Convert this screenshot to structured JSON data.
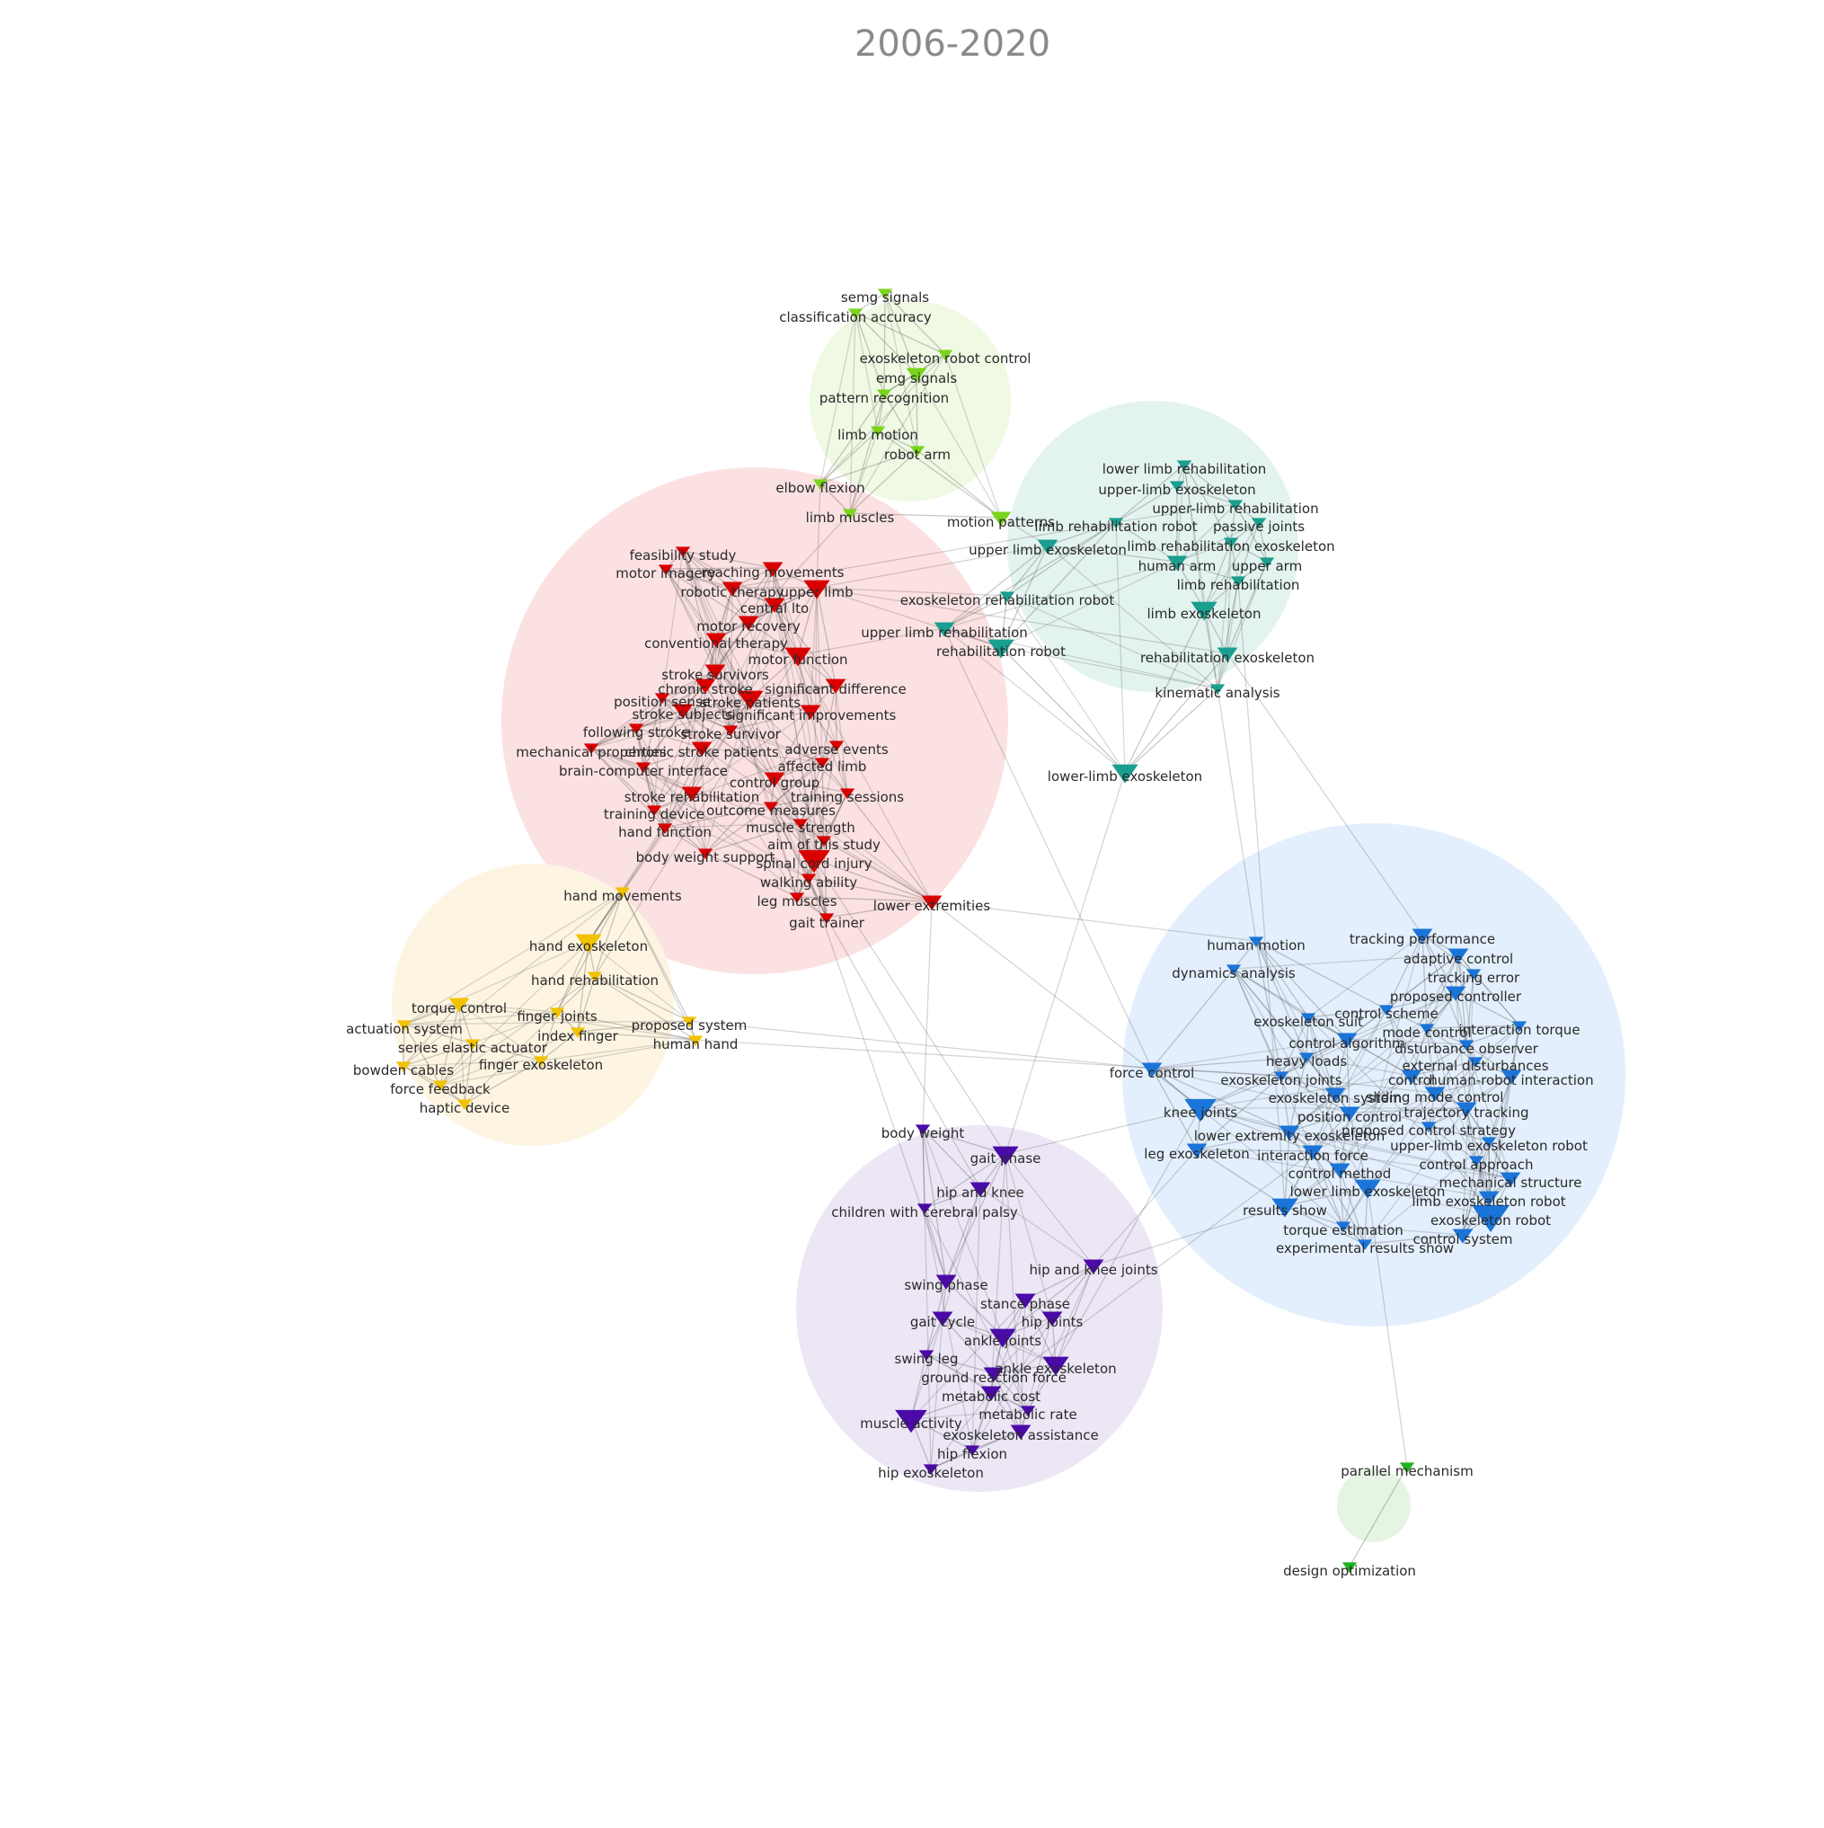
{
  "title": "2006-2020",
  "clusters": [
    {
      "id": "red",
      "color": "#d90000",
      "halo": "#fbe1e1"
    },
    {
      "id": "teal",
      "color": "#1a9e8f",
      "halo": "#e3f3ef"
    },
    {
      "id": "lime",
      "color": "#7ad51c",
      "halo": "#eff9e4"
    },
    {
      "id": "yellow",
      "color": "#f2c200",
      "halo": "#fdf5e2"
    },
    {
      "id": "blue",
      "color": "#1b74d8",
      "halo": "#e3effc"
    },
    {
      "id": "purple",
      "color": "#4a0aa8",
      "halo": "#ece6f5"
    },
    {
      "id": "green",
      "color": "#1fb31f",
      "halo": "#e6f5e3"
    }
  ],
  "nodes": [
    {
      "label": "semg signals",
      "cluster": "lime",
      "size": 1
    },
    {
      "label": "classification accuracy",
      "cluster": "lime",
      "size": 1
    },
    {
      "label": "exoskeleton robot control",
      "cluster": "lime",
      "size": 1
    },
    {
      "label": "emg signals",
      "cluster": "lime",
      "size": 2
    },
    {
      "label": "pattern recognition",
      "cluster": "lime",
      "size": 1
    },
    {
      "label": "limb motion",
      "cluster": "lime",
      "size": 1
    },
    {
      "label": "robot arm",
      "cluster": "lime",
      "size": 1
    },
    {
      "label": "elbow flexion",
      "cluster": "lime",
      "size": 1
    },
    {
      "label": "limb muscles",
      "cluster": "lime",
      "size": 1
    },
    {
      "label": "motion patterns",
      "cluster": "lime",
      "size": 2
    },
    {
      "label": "lower limb rehabilitation",
      "cluster": "teal",
      "size": 1
    },
    {
      "label": "upper-limb exoskeleton",
      "cluster": "teal",
      "size": 1
    },
    {
      "label": "upper-limb rehabilitation",
      "cluster": "teal",
      "size": 1
    },
    {
      "label": "limb rehabilitation robot",
      "cluster": "teal",
      "size": 1
    },
    {
      "label": "passive joints",
      "cluster": "teal",
      "size": 1
    },
    {
      "label": "upper limb exoskeleton",
      "cluster": "teal",
      "size": 2
    },
    {
      "label": "limb rehabilitation exoskeleton",
      "cluster": "teal",
      "size": 1
    },
    {
      "label": "human arm",
      "cluster": "teal",
      "size": 2
    },
    {
      "label": "upper arm",
      "cluster": "teal",
      "size": 1
    },
    {
      "label": "limb rehabilitation",
      "cluster": "teal",
      "size": 1
    },
    {
      "label": "exoskeleton rehabilitation robot",
      "cluster": "teal",
      "size": 1
    },
    {
      "label": "limb exoskeleton",
      "cluster": "teal",
      "size": 3
    },
    {
      "label": "upper limb rehabilitation",
      "cluster": "teal",
      "size": 2
    },
    {
      "label": "rehabilitation robot",
      "cluster": "teal",
      "size": 3
    },
    {
      "label": "rehabilitation exoskeleton",
      "cluster": "teal",
      "size": 2
    },
    {
      "label": "kinematic analysis",
      "cluster": "teal",
      "size": 1
    },
    {
      "label": "lower-limb exoskeleton",
      "cluster": "teal",
      "size": 3
    },
    {
      "label": "feasibility study",
      "cluster": "red",
      "size": 1
    },
    {
      "label": "motor imagery",
      "cluster": "red",
      "size": 1
    },
    {
      "label": "reaching movements",
      "cluster": "red",
      "size": 2
    },
    {
      "label": "robotic therapy",
      "cluster": "red",
      "size": 2
    },
    {
      "label": "upper limb",
      "cluster": "red",
      "size": 3
    },
    {
      "label": "central lto",
      "cluster": "red",
      "size": 2
    },
    {
      "label": "motor recovery",
      "cluster": "red",
      "size": 2
    },
    {
      "label": "conventional therapy",
      "cluster": "red",
      "size": 2
    },
    {
      "label": "motor function",
      "cluster": "red",
      "size": 3
    },
    {
      "label": "stroke survivors",
      "cluster": "red",
      "size": 2
    },
    {
      "label": "chronic stroke",
      "cluster": "red",
      "size": 2
    },
    {
      "label": "significant difference",
      "cluster": "red",
      "size": 2
    },
    {
      "label": "position sense",
      "cluster": "red",
      "size": 1
    },
    {
      "label": "stroke patients",
      "cluster": "red",
      "size": 3
    },
    {
      "label": "stroke subjects",
      "cluster": "red",
      "size": 2
    },
    {
      "label": "significant improvements",
      "cluster": "red",
      "size": 2
    },
    {
      "label": "following stroke",
      "cluster": "red",
      "size": 1
    },
    {
      "label": "stroke survivor",
      "cluster": "red",
      "size": 1
    },
    {
      "label": "mechanical properties",
      "cluster": "red",
      "size": 1
    },
    {
      "label": "chronic stroke patients",
      "cluster": "red",
      "size": 2
    },
    {
      "label": "adverse events",
      "cluster": "red",
      "size": 1
    },
    {
      "label": "brain-computer interface",
      "cluster": "red",
      "size": 1
    },
    {
      "label": "affected limb",
      "cluster": "red",
      "size": 1
    },
    {
      "label": "control group",
      "cluster": "red",
      "size": 2
    },
    {
      "label": "stroke rehabilitation",
      "cluster": "red",
      "size": 2
    },
    {
      "label": "training sessions",
      "cluster": "red",
      "size": 1
    },
    {
      "label": "outcome measures",
      "cluster": "red",
      "size": 1
    },
    {
      "label": "training device",
      "cluster": "red",
      "size": 1
    },
    {
      "label": "muscle strength",
      "cluster": "red",
      "size": 1
    },
    {
      "label": "hand function",
      "cluster": "red",
      "size": 1
    },
    {
      "label": "aim of this study",
      "cluster": "red",
      "size": 1
    },
    {
      "label": "body weight support",
      "cluster": "red",
      "size": 1
    },
    {
      "label": "spinal cord injury",
      "cluster": "red",
      "size": 4
    },
    {
      "label": "walking ability",
      "cluster": "red",
      "size": 1
    },
    {
      "label": "leg muscles",
      "cluster": "red",
      "size": 1
    },
    {
      "label": "lower extremities",
      "cluster": "red",
      "size": 2
    },
    {
      "label": "gait trainer",
      "cluster": "red",
      "size": 1
    },
    {
      "label": "hand movements",
      "cluster": "yellow",
      "size": 1
    },
    {
      "label": "hand exoskeleton",
      "cluster": "yellow",
      "size": 3
    },
    {
      "label": "hand rehabilitation",
      "cluster": "yellow",
      "size": 1
    },
    {
      "label": "torque control",
      "cluster": "yellow",
      "size": 2
    },
    {
      "label": "finger joints",
      "cluster": "yellow",
      "size": 1
    },
    {
      "label": "actuation system",
      "cluster": "yellow",
      "size": 1
    },
    {
      "label": "proposed system",
      "cluster": "yellow",
      "size": 1
    },
    {
      "label": "index finger",
      "cluster": "yellow",
      "size": 1
    },
    {
      "label": "human hand",
      "cluster": "yellow",
      "size": 1
    },
    {
      "label": "series elastic actuator",
      "cluster": "yellow",
      "size": 1
    },
    {
      "label": "finger exoskeleton",
      "cluster": "yellow",
      "size": 1
    },
    {
      "label": "bowden cables",
      "cluster": "yellow",
      "size": 1
    },
    {
      "label": "force feedback",
      "cluster": "yellow",
      "size": 1
    },
    {
      "label": "haptic device",
      "cluster": "yellow",
      "size": 1
    },
    {
      "label": "tracking performance",
      "cluster": "blue",
      "size": 2
    },
    {
      "label": "human motion",
      "cluster": "blue",
      "size": 1
    },
    {
      "label": "adaptive control",
      "cluster": "blue",
      "size": 2
    },
    {
      "label": "tracking error",
      "cluster": "blue",
      "size": 1
    },
    {
      "label": "dynamics analysis",
      "cluster": "blue",
      "size": 1
    },
    {
      "label": "proposed controller",
      "cluster": "blue",
      "size": 2
    },
    {
      "label": "control scheme",
      "cluster": "blue",
      "size": 1
    },
    {
      "label": "exoskeleton suit",
      "cluster": "blue",
      "size": 1
    },
    {
      "label": "mode control",
      "cluster": "blue",
      "size": 1
    },
    {
      "label": "interaction torque",
      "cluster": "blue",
      "size": 1
    },
    {
      "label": "control algorithm",
      "cluster": "blue",
      "size": 2
    },
    {
      "label": "disturbance observer",
      "cluster": "blue",
      "size": 1
    },
    {
      "label": "heavy loads",
      "cluster": "blue",
      "size": 1
    },
    {
      "label": "external disturbances",
      "cluster": "blue",
      "size": 1
    },
    {
      "label": "force control",
      "cluster": "blue",
      "size": 2
    },
    {
      "label": "exoskeleton joints",
      "cluster": "blue",
      "size": 1
    },
    {
      "label": "control",
      "cluster": "blue",
      "size": 2
    },
    {
      "label": "human-robot interaction",
      "cluster": "blue",
      "size": 2
    },
    {
      "label": "exoskeleton system",
      "cluster": "blue",
      "size": 2
    },
    {
      "label": "sliding mode control",
      "cluster": "blue",
      "size": 2
    },
    {
      "label": "knee joints",
      "cluster": "blue",
      "size": 4
    },
    {
      "label": "position control",
      "cluster": "blue",
      "size": 2
    },
    {
      "label": "trajectory tracking",
      "cluster": "blue",
      "size": 2
    },
    {
      "label": "proposed control strategy",
      "cluster": "blue",
      "size": 1
    },
    {
      "label": "lower extremity exoskeleton",
      "cluster": "blue",
      "size": 2
    },
    {
      "label": "upper-limb exoskeleton robot",
      "cluster": "blue",
      "size": 1
    },
    {
      "label": "leg exoskeleton",
      "cluster": "blue",
      "size": 2
    },
    {
      "label": "interaction force",
      "cluster": "blue",
      "size": 2
    },
    {
      "label": "control approach",
      "cluster": "blue",
      "size": 1
    },
    {
      "label": "control method",
      "cluster": "blue",
      "size": 2
    },
    {
      "label": "mechanical structure",
      "cluster": "blue",
      "size": 2
    },
    {
      "label": "lower limb exoskeleton",
      "cluster": "blue",
      "size": 3
    },
    {
      "label": "limb exoskeleton robot",
      "cluster": "blue",
      "size": 2
    },
    {
      "label": "results show",
      "cluster": "blue",
      "size": 3
    },
    {
      "label": "exoskeleton robot",
      "cluster": "blue",
      "size": 5
    },
    {
      "label": "torque estimation",
      "cluster": "blue",
      "size": 1
    },
    {
      "label": "control system",
      "cluster": "blue",
      "size": 2
    },
    {
      "label": "experimental results show",
      "cluster": "blue",
      "size": 1
    },
    {
      "label": "body weight",
      "cluster": "purple",
      "size": 1
    },
    {
      "label": "gait phase",
      "cluster": "purple",
      "size": 3
    },
    {
      "label": "hip and knee",
      "cluster": "purple",
      "size": 2
    },
    {
      "label": "children with cerebral palsy",
      "cluster": "purple",
      "size": 1
    },
    {
      "label": "hip and knee joints",
      "cluster": "purple",
      "size": 2
    },
    {
      "label": "swing phase",
      "cluster": "purple",
      "size": 2
    },
    {
      "label": "stance phase",
      "cluster": "purple",
      "size": 2
    },
    {
      "label": "gait cycle",
      "cluster": "purple",
      "size": 2
    },
    {
      "label": "hip joints",
      "cluster": "purple",
      "size": 2
    },
    {
      "label": "ankle joints",
      "cluster": "purple",
      "size": 3
    },
    {
      "label": "swing leg",
      "cluster": "purple",
      "size": 1
    },
    {
      "label": "ankle exoskeleton",
      "cluster": "purple",
      "size": 3
    },
    {
      "label": "ground reaction force",
      "cluster": "purple",
      "size": 2
    },
    {
      "label": "metabolic cost",
      "cluster": "purple",
      "size": 2
    },
    {
      "label": "metabolic rate",
      "cluster": "purple",
      "size": 1
    },
    {
      "label": "muscle activity",
      "cluster": "purple",
      "size": 4
    },
    {
      "label": "exoskeleton assistance",
      "cluster": "purple",
      "size": 2
    },
    {
      "label": "hip flexion",
      "cluster": "purple",
      "size": 1
    },
    {
      "label": "hip exoskeleton",
      "cluster": "purple",
      "size": 1
    },
    {
      "label": "parallel mechanism",
      "cluster": "green",
      "size": 1
    },
    {
      "label": "design optimization",
      "cluster": "green",
      "size": 1
    }
  ]
}
